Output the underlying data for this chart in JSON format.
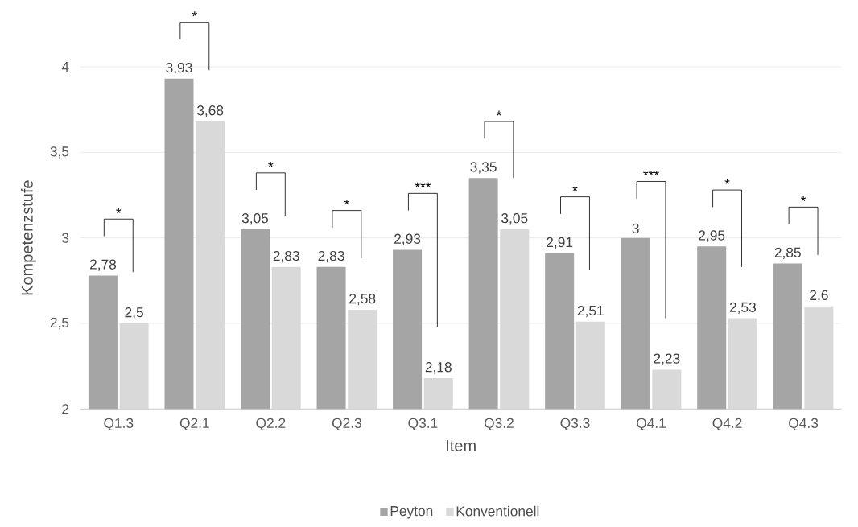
{
  "chart_data": {
    "type": "bar",
    "xlabel": "Item",
    "ylabel": "Kompetenzstufe",
    "categories": [
      "Q1.3",
      "Q2.1",
      "Q2.2",
      "Q2.3",
      "Q3.1",
      "Q3.2",
      "Q3.3",
      "Q4.1",
      "Q4.2",
      "Q4.3"
    ],
    "series": [
      {
        "name": "Peyton",
        "color": "#a5a5a5",
        "values": [
          2.78,
          3.93,
          3.05,
          2.83,
          2.93,
          3.35,
          2.91,
          3,
          2.95,
          2.85
        ],
        "value_labels": [
          "2,78",
          "3,93",
          "3,05",
          "2,83",
          "2,93",
          "3,35",
          "2,91",
          "3",
          "2,95",
          "2,85"
        ]
      },
      {
        "name": "Konventionell",
        "color": "#d9d9d9",
        "values": [
          2.5,
          3.68,
          2.83,
          2.58,
          2.18,
          3.05,
          2.51,
          2.23,
          2.53,
          2.6
        ],
        "value_labels": [
          "2,5",
          "3,68",
          "2,83",
          "2,58",
          "2,18",
          "3,05",
          "2,51",
          "2,23",
          "2,53",
          "2,6"
        ]
      }
    ],
    "ylim": [
      2,
      4
    ],
    "yticks": [
      2,
      {
        "value": 2.5,
        "label": "2,5"
      },
      3,
      {
        "value": 3.5,
        "label": "3,5"
      },
      4
    ],
    "grid": "y",
    "legend": "bottom",
    "annotations": [
      "*",
      "*",
      "*",
      "*",
      "***",
      "*",
      "*",
      "***",
      "*",
      "*"
    ]
  }
}
